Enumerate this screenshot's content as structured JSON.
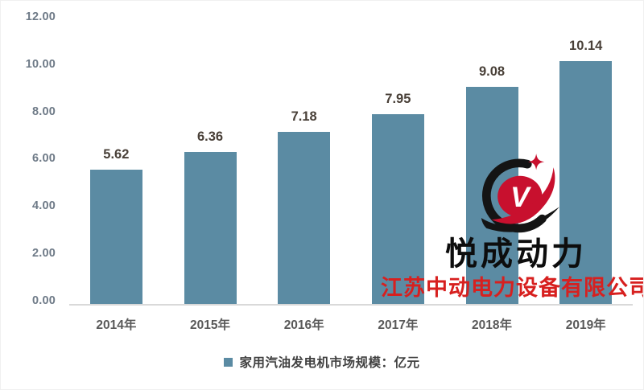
{
  "chart_data": {
    "type": "bar",
    "categories": [
      "2014年",
      "2015年",
      "2016年",
      "2017年",
      "2018年",
      "2019年"
    ],
    "values": [
      5.62,
      6.36,
      7.18,
      7.95,
      9.08,
      10.14
    ],
    "value_labels": [
      "5.62",
      "6.36",
      "7.18",
      "7.95",
      "9.08",
      "10.14"
    ],
    "title": "",
    "xlabel": "",
    "ylabel": "",
    "ylim": [
      0,
      12
    ],
    "ytick_interval": 2,
    "yticks": [
      "12.00",
      "10.00",
      "8.00",
      "6.00",
      "4.00",
      "2.00",
      "0.00"
    ],
    "grid": false,
    "legend_position": "bottom",
    "legend": {
      "label": "家用汽油发电机市场规模：亿元"
    },
    "bar_color": "#5b8ba3"
  },
  "colors": {
    "bar": "#5b8ba3",
    "axis_line": "#d9d9d9",
    "value_label": "#494038",
    "tick_label": "#6e7a87",
    "x_label": "#595959",
    "watermark_black": "#0d0d0d",
    "watermark_red": "#d7201f",
    "logo_red": "#c8102e",
    "logo_black": "#141414"
  },
  "watermark": {
    "brand_text": "悦成动力",
    "company_text": "江苏中动电力设备有限公司",
    "logo_letter": "V"
  }
}
